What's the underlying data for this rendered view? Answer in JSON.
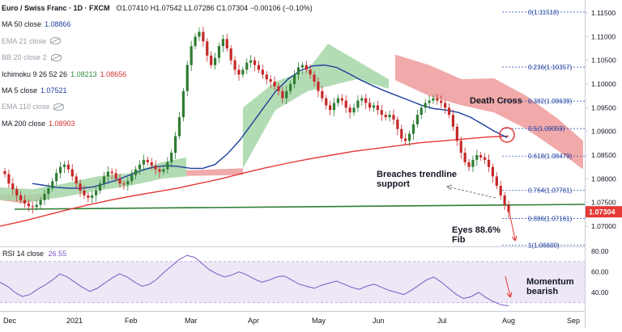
{
  "header": {
    "symbol": "Euro / Swiss Franc · 1D · FXCM",
    "ohlc": "O1.07410 H1.07542 L1.07286 C1.07304 −0.00106 (−0.10%)"
  },
  "indicators": [
    {
      "label": "MA 50 close",
      "value": "1.08866",
      "color": "#1e3f9e",
      "visible": true
    },
    {
      "label": "EMA 21 close",
      "value": "",
      "color": "#9aa0aa",
      "visible": false
    },
    {
      "label": "BB 20 close 2",
      "value": "",
      "color": "#9aa0aa",
      "visible": false
    },
    {
      "label": "Ichimoku 9 26 52 26",
      "value": "1.08213",
      "value2": "1.08656",
      "color": "#2e8b3a",
      "color2": "#d32f2f",
      "visible": true
    },
    {
      "label": "MA 5 close",
      "value": "1.07521",
      "color": "#1e3f9e",
      "visible": true
    },
    {
      "label": "EMA 110 close",
      "value": "",
      "color": "#9aa0aa",
      "visible": false
    },
    {
      "label": "MA 200 close",
      "value": "1.08903",
      "color": "#d32f2f",
      "visible": true
    }
  ],
  "price_axis": {
    "ticks": [
      "1.11500",
      "1.11000",
      "1.10500",
      "1.10000",
      "1.09500",
      "1.09000",
      "1.08500",
      "1.08000",
      "1.07500",
      "1.07000"
    ],
    "current_price": "1.07304",
    "current_value": 1.07304
  },
  "rsi": {
    "label": "RSI 14 close",
    "value": "26.55",
    "ticks": [
      "80.00",
      "60.00",
      "40.00"
    ],
    "band_upper": 70,
    "band_lower": 30,
    "color": "#7e57c2"
  },
  "time_axis": {
    "labels": [
      "Dec",
      "2021",
      "Feb",
      "Mar",
      "Apr",
      "May",
      "Jun",
      "Jul",
      "Aug",
      "Sep"
    ]
  },
  "fib_levels": [
    {
      "label": "0(1.11518)",
      "value": 1.11518
    },
    {
      "label": "0.236(1.10357)",
      "value": 1.10357
    },
    {
      "label": "0.382(1.09639)",
      "value": 1.09639
    },
    {
      "label": "0.5(1.09059)",
      "value": 1.09059
    },
    {
      "label": "0.618(1.08479)",
      "value": 1.08479
    },
    {
      "label": "0.764(1.07761)",
      "value": 1.07761
    },
    {
      "label": "0.886(1.07161)",
      "value": 1.07161
    },
    {
      "label": "1(1.06600)",
      "value": 1.066
    }
  ],
  "annotations": {
    "death_cross": "Death Cross",
    "breaches_line1": "Breaches trendline",
    "breaches_line2": "support",
    "eyes_line1": "Eyes 88.6%",
    "eyes_line2": "Fib",
    "momentum_line1": "Momentum",
    "momentum_line2": "bearish"
  },
  "colors": {
    "bull": "#26a69a",
    "bear": "#ef5350",
    "candle_up": "#2e7d32",
    "candle_down": "#c62828",
    "ma50": "#1e3f9e",
    "ma200": "#e53935",
    "trendline": "#2e7d32",
    "cloud_bull": "#a5d6a7",
    "cloud_bear": "#ef9a9a",
    "rsi": "#7e57c2",
    "axis_text": "#131722",
    "price_tag": "#e53935"
  },
  "chart_data": {
    "type": "candlestick",
    "title": "Euro / Swiss Franc · 1D · FXCM",
    "x_period": [
      "Dec",
      "Sep"
    ],
    "ylim": [
      1.0655,
      1.1165
    ],
    "last_close": 1.07304,
    "ma50_last": 1.08866,
    "ma200_last": 1.08903,
    "ichimoku_values": [
      1.08213,
      1.08656
    ],
    "ma5_last": 1.07521,
    "rsi_last": 26.55,
    "rsi_ylim": [
      20,
      86
    ],
    "fib_retracement": [
      {
        "ratio": 0,
        "price": 1.11518
      },
      {
        "ratio": 0.236,
        "price": 1.10357
      },
      {
        "ratio": 0.382,
        "price": 1.09639
      },
      {
        "ratio": 0.5,
        "price": 1.09059
      },
      {
        "ratio": 0.618,
        "price": 1.08479
      },
      {
        "ratio": 0.764,
        "price": 1.07761
      },
      {
        "ratio": 0.886,
        "price": 1.07161
      },
      {
        "ratio": 1,
        "price": 1.066
      }
    ],
    "close_path": [
      1.081,
      1.079,
      1.0778,
      1.0765,
      1.0755,
      1.0748,
      1.0742,
      1.074,
      1.0745,
      1.0755,
      1.0768,
      1.078,
      1.0795,
      1.0812,
      1.0825,
      1.083,
      1.082,
      1.0805,
      1.079,
      1.0775,
      1.0765,
      1.076,
      1.0765,
      1.0775,
      1.079,
      1.0805,
      1.0815,
      1.0812,
      1.08,
      1.079,
      1.0788,
      1.0795,
      1.0808,
      1.082,
      1.083,
      1.084,
      1.0835,
      1.0828,
      1.082,
      1.0815,
      1.082,
      1.0835,
      1.0855,
      1.089,
      1.093,
      1.0985,
      1.104,
      1.108,
      1.11,
      1.111,
      1.109,
      1.106,
      1.104,
      1.1055,
      1.108,
      1.1095,
      1.1075,
      1.105,
      1.103,
      1.102,
      1.103,
      1.1045,
      1.105,
      1.104,
      1.103,
      1.102,
      1.101,
      1.1005,
      1.0995,
      1.0985,
      1.097,
      1.0985,
      1.1,
      1.102,
      1.1035,
      1.104,
      1.103,
      1.102,
      1.1005,
      1.0985,
      1.097,
      1.0955,
      1.0945,
      1.096,
      1.097,
      1.0965,
      1.095,
      1.094,
      1.095,
      1.0965,
      1.097,
      1.096,
      1.095,
      1.0955,
      1.0945,
      1.0935,
      1.093,
      1.0935,
      1.0925,
      1.0905,
      1.0885,
      1.088,
      1.0895,
      1.0915,
      1.0935,
      1.095,
      1.096,
      1.0965,
      1.097,
      1.0965,
      1.096,
      1.095,
      1.0935,
      1.091,
      1.088,
      1.0855,
      1.0835,
      1.0825,
      1.084,
      1.085,
      1.0845,
      1.084,
      1.0825,
      1.0805,
      1.0785,
      1.0765,
      1.0745,
      1.073
    ],
    "ma50_path": [
      1.079,
      1.0786,
      1.0782,
      1.078,
      1.078,
      1.0783,
      1.079,
      1.0798,
      1.0808,
      1.0818,
      1.0825,
      1.0828,
      1.0826,
      1.0822,
      1.0822,
      1.083,
      1.0852,
      1.088,
      1.0915,
      1.095,
      1.0985,
      1.101,
      1.1028,
      1.1038,
      1.104,
      1.1035,
      1.1022,
      1.1008,
      1.0996,
      1.0985,
      1.0975,
      1.0965,
      1.0955,
      1.0948,
      1.0945,
      1.094,
      1.093,
      1.0915,
      1.09,
      1.0887
    ],
    "ma200_path": [
      1.07,
      1.071,
      1.0722,
      1.0734,
      1.0745,
      1.0755,
      1.0764,
      1.0772,
      1.078,
      1.079,
      1.08,
      1.0812,
      1.0823,
      1.0833,
      1.0842,
      1.085,
      1.0858,
      1.0864,
      1.087,
      1.0876,
      1.088,
      1.0884,
      1.0888,
      1.089
    ],
    "rsi_path": [
      50,
      46,
      40,
      36,
      38,
      43,
      47,
      52,
      58,
      55,
      50,
      45,
      41,
      44,
      49,
      54,
      58,
      55,
      50,
      46,
      48,
      53,
      60,
      66,
      72,
      76,
      74,
      68,
      62,
      58,
      55,
      57,
      60,
      57,
      53,
      50,
      52,
      55,
      56,
      52,
      48,
      46,
      44,
      47,
      49,
      51,
      48,
      45,
      43,
      46,
      48,
      45,
      42,
      40,
      38,
      42,
      47,
      52,
      55,
      50,
      44,
      38,
      34,
      36,
      40,
      35,
      31,
      28,
      27
    ]
  }
}
